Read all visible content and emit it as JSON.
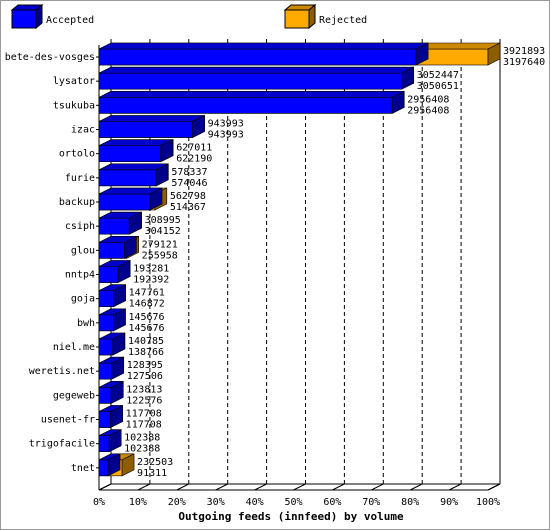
{
  "chart_data": {
    "type": "bar3d-horizontal",
    "x_label": "Outgoing feeds (innfeed) by volume",
    "categories": [
      "bete-des-vosges",
      "lysator",
      "tsukuba",
      "izac",
      "ortolo",
      "furie",
      "backup",
      "csiph",
      "glou",
      "nntp4",
      "goja",
      "bwh",
      "niel.me",
      "weretis.net",
      "gegeweb",
      "usenet-fr",
      "trigofacile",
      "tnet"
    ],
    "series": [
      {
        "name": "Rejected",
        "color": "#ffaa00",
        "values": [
          3921893,
          3052447,
          2956408,
          943993,
          627011,
          578337,
          562798,
          308995,
          279121,
          193281,
          147761,
          145676,
          140785,
          128395,
          123813,
          117708,
          102388,
          232503
        ]
      },
      {
        "name": "Accepted",
        "color": "#0000ff",
        "values": [
          3197640,
          3050651,
          2956408,
          943993,
          622190,
          574046,
          514367,
          304152,
          255958,
          192392,
          146872,
          145676,
          138766,
          127506,
          122576,
          117708,
          102388,
          91311
        ]
      }
    ],
    "xlim": [
      0,
      3921893
    ],
    "xticks": [
      {
        "value": 0,
        "label": "0%"
      },
      {
        "value": 392189.3,
        "label": "10%"
      },
      {
        "value": 784378.6,
        "label": "20%"
      },
      {
        "value": 1176567.9,
        "label": "30%"
      },
      {
        "value": 1568757.2,
        "label": "40%"
      },
      {
        "value": 1960946.5,
        "label": "50%"
      },
      {
        "value": 2353135.8,
        "label": "60%"
      },
      {
        "value": 2745325.1,
        "label": "70%"
      },
      {
        "value": 3137514.4,
        "label": "80%"
      },
      {
        "value": 3529703.7,
        "label": "90%"
      },
      {
        "value": 3921893,
        "label": "100%"
      }
    ],
    "grid": true
  }
}
